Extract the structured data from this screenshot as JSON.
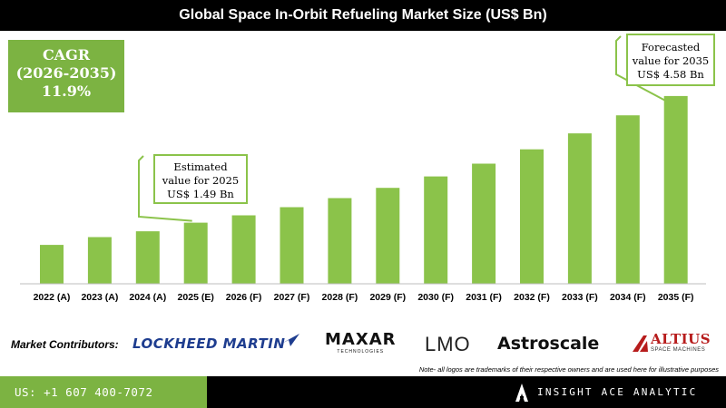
{
  "title": "Global Space In-Orbit Refueling Market Size (US$ Bn)",
  "cagr": {
    "line1": "CAGR",
    "line2": "(2026-2035)",
    "value": "11.9%"
  },
  "callouts": {
    "estimated": {
      "line1": "Estimated",
      "line2": "value for 2025",
      "line3": "US$ 1.49 Bn"
    },
    "forecasted": {
      "line1": "Forecasted",
      "line2": "value for 2035",
      "line3": "US$ 4.58 Bn"
    }
  },
  "chart_data": {
    "type": "bar",
    "title": "Global Space In-Orbit Refueling Market Size (US$ Bn)",
    "categories": [
      "2022 (A)",
      "2023 (A)",
      "2024 (A)",
      "2025 (E)",
      "2026 (F)",
      "2027 (F)",
      "2028 (F)",
      "2029 (F)",
      "2030 (F)",
      "2031 (F)",
      "2032 (F)",
      "2033 (F)",
      "2034 (F)",
      "2035 (F)"
    ],
    "values": [
      0.95,
      1.14,
      1.28,
      1.49,
      1.67,
      1.87,
      2.09,
      2.34,
      2.62,
      2.93,
      3.28,
      3.67,
      4.11,
      4.58
    ],
    "ylim": [
      0,
      4.8
    ],
    "grid": false,
    "legend": "none",
    "bar_color": "#8bc34a"
  },
  "contributors": {
    "label": "Market Contributors:",
    "logos": {
      "lockheed": "LOCKHEED MARTIN",
      "maxar": "MAXAR",
      "maxar_sub": "TECHNOLOGIES",
      "lmo": "LMO",
      "astroscale": "Astroscale",
      "altius": "ALTIUS",
      "altius_sub": "SPACE MACHINES"
    }
  },
  "note": "Note- all logos are trademarks of their respective owners and are used here for illustrative purposes",
  "footer": {
    "phone": "US: +1 607 400-7072",
    "brand": "INSIGHT ACE ANALYTIC"
  },
  "colors": {
    "accent": "#7cb342",
    "bar": "#8bc34a",
    "dark": "#000000"
  }
}
